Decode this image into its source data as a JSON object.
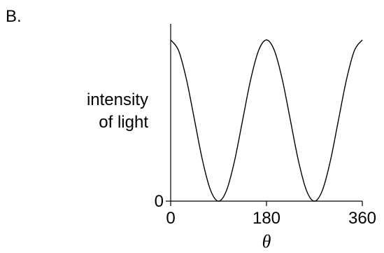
{
  "chart_data": {
    "type": "line",
    "panel_label": "B.",
    "title": "",
    "xlabel": "θ",
    "ylabel_lines": [
      "intensity",
      "of light"
    ],
    "x_ticks": [
      "0",
      "180",
      "360"
    ],
    "y_ticks": [
      "0"
    ],
    "xlim": [
      0,
      360
    ],
    "ylim": [
      0,
      1.1
    ],
    "grid": false,
    "legend": "none",
    "series": [
      {
        "x": [
          0,
          15,
          30,
          45,
          60,
          75,
          90,
          105,
          120,
          135,
          150,
          165,
          180,
          195,
          210,
          225,
          240,
          255,
          270,
          285,
          300,
          315,
          330,
          345,
          360
        ],
        "y": [
          1.0,
          0.933,
          0.75,
          0.5,
          0.25,
          0.067,
          0.0,
          0.067,
          0.25,
          0.5,
          0.75,
          0.933,
          1.0,
          0.933,
          0.75,
          0.5,
          0.25,
          0.067,
          0.0,
          0.067,
          0.25,
          0.5,
          0.75,
          0.933,
          1.0
        ]
      }
    ],
    "colors": {
      "line": "#000000",
      "axis": "#000000"
    }
  }
}
